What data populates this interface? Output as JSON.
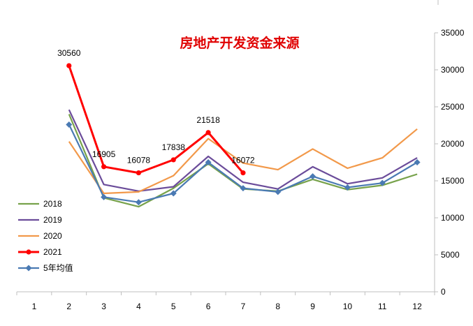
{
  "chart_data": {
    "type": "line",
    "title": "房地产开发资金来源",
    "categories": [
      "1",
      "2",
      "3",
      "4",
      "5",
      "6",
      "7",
      "8",
      "9",
      "10",
      "11",
      "12"
    ],
    "ylim": [
      0,
      35000
    ],
    "y_ticks": [
      "0",
      "5000",
      "10000",
      "15000",
      "20000",
      "25000",
      "30000",
      "35000"
    ],
    "y_axis_side": "right",
    "grid": false,
    "legend_position": "left",
    "series": [
      {
        "name": "2018",
        "color": "#77a24b",
        "marker": "none",
        "values": [
          null,
          24000,
          12700,
          11500,
          14000,
          17300,
          13900,
          13600,
          15200,
          13800,
          14400,
          15900
        ]
      },
      {
        "name": "2019",
        "color": "#6b4c9a",
        "marker": "none",
        "values": [
          null,
          24600,
          14500,
          13600,
          14200,
          18300,
          14800,
          13900,
          16900,
          14600,
          15400,
          18100
        ]
      },
      {
        "name": "2020",
        "color": "#f2994a",
        "marker": "none",
        "values": [
          null,
          20300,
          13300,
          13500,
          15700,
          20700,
          17400,
          16500,
          19300,
          16700,
          18100,
          22000
        ]
      },
      {
        "name": "2021",
        "color": "#ff0000",
        "marker": "circle",
        "values": [
          null,
          30560,
          16905,
          16078,
          17838,
          21518,
          16072,
          null,
          null,
          null,
          null,
          null
        ],
        "data_labels": [
          "",
          "30560",
          "16905",
          "16078",
          "17838",
          "21518",
          "16072",
          "",
          "",
          "",
          "",
          ""
        ]
      },
      {
        "name": "5年均值",
        "color": "#4a7ab3",
        "marker": "diamond",
        "values": [
          null,
          22600,
          12800,
          12100,
          13300,
          17500,
          14000,
          13500,
          15600,
          14100,
          14700,
          17500
        ]
      }
    ]
  }
}
